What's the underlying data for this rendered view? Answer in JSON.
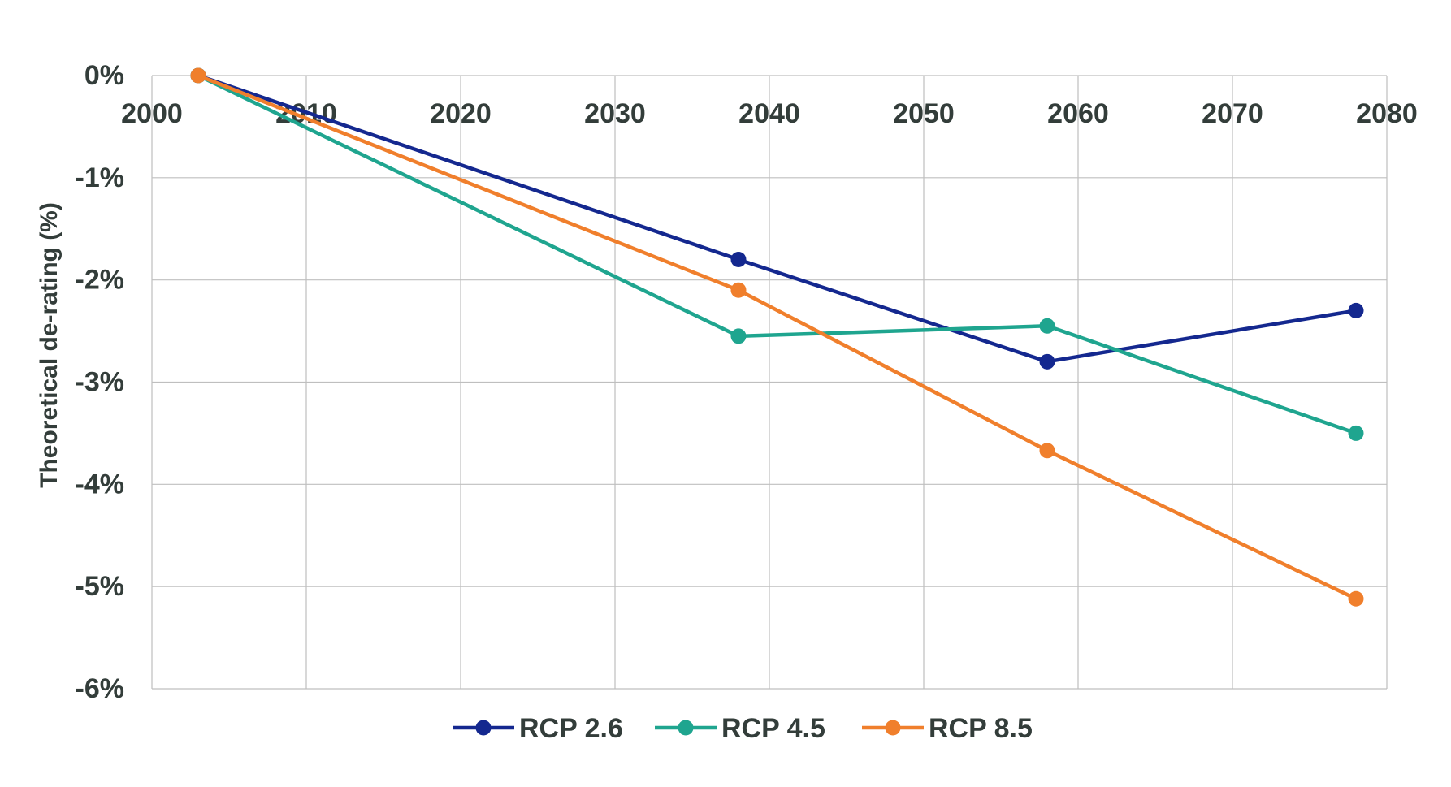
{
  "chart_data": {
    "type": "line",
    "title": "",
    "xlabel": "",
    "ylabel": "Theoretical de-rating (%)",
    "xlim": [
      2000,
      2080
    ],
    "ylim": [
      -6,
      0
    ],
    "x_ticks": [
      2000,
      2010,
      2020,
      2030,
      2040,
      2050,
      2060,
      2070,
      2080
    ],
    "x_tick_labels": [
      "2000",
      "2010",
      "2020",
      "2030",
      "2040",
      "2050",
      "2060",
      "2070",
      "2080"
    ],
    "y_ticks": [
      0,
      -1,
      -2,
      -3,
      -4,
      -5,
      -6
    ],
    "y_tick_labels": [
      "0%",
      "-1%",
      "-2%",
      "-3%",
      "-4%",
      "-5%",
      "-6%"
    ],
    "x_axis_position": "top",
    "grid": true,
    "legend_position": "bottom-center",
    "series": [
      {
        "name": "RCP 2.6",
        "color": "#14288f",
        "x": [
          2003,
          2038,
          2058,
          2078
        ],
        "values": [
          0,
          -1.8,
          -2.8,
          -2.3
        ]
      },
      {
        "name": "RCP 4.5",
        "color": "#1fa58f",
        "x": [
          2003,
          2038,
          2058,
          2078
        ],
        "values": [
          0,
          -2.55,
          -2.45,
          -3.5
        ]
      },
      {
        "name": "RCP 8.5",
        "color": "#f07f2c",
        "x": [
          2003,
          2038,
          2058,
          2078
        ],
        "values": [
          0,
          -2.1,
          -3.67,
          -5.12
        ]
      }
    ]
  }
}
